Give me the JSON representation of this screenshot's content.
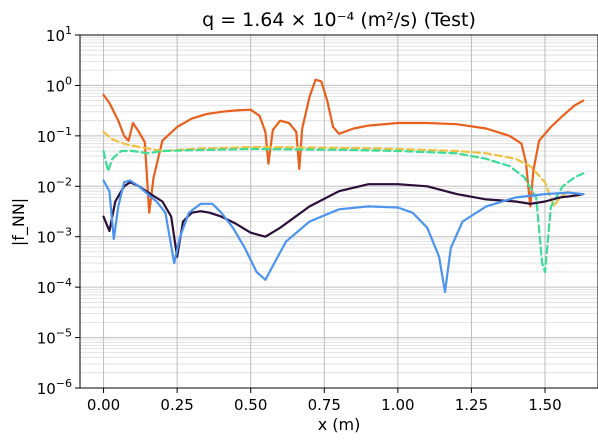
{
  "chart_data": {
    "type": "line",
    "title": "q = 1.64 × 10⁻⁴ (m²/s) (Test)",
    "xlabel": "x (m)",
    "ylabel": "|f_NN|",
    "xlim": [
      -0.08,
      1.68
    ],
    "ylim": [
      1e-06,
      10
    ],
    "yscale": "log",
    "grid": true,
    "legend": "none",
    "xticks": [
      {
        "value": 0.0,
        "label": "0.00"
      },
      {
        "value": 0.25,
        "label": "0.25"
      },
      {
        "value": 0.5,
        "label": "0.50"
      },
      {
        "value": 0.75,
        "label": "0.75"
      },
      {
        "value": 1.0,
        "label": "1.00"
      },
      {
        "value": 1.25,
        "label": "1.25"
      },
      {
        "value": 1.5,
        "label": "1.50"
      }
    ],
    "yticks": [
      {
        "value": 1e-06,
        "exp": "−6"
      },
      {
        "value": 1e-05,
        "exp": "−5"
      },
      {
        "value": 0.0001,
        "exp": "−4"
      },
      {
        "value": 0.001,
        "exp": "−3"
      },
      {
        "value": 0.01,
        "exp": "−2"
      },
      {
        "value": 0.1,
        "exp": "−1"
      },
      {
        "value": 1,
        "exp": "0"
      },
      {
        "value": 10,
        "exp": "1"
      }
    ],
    "series": [
      {
        "color": "#e8601c",
        "dashed": false,
        "points": [
          [
            0.0,
            0.65
          ],
          [
            0.02,
            0.45
          ],
          [
            0.05,
            0.2
          ],
          [
            0.07,
            0.1
          ],
          [
            0.085,
            0.08
          ],
          [
            0.1,
            0.18
          ],
          [
            0.12,
            0.12
          ],
          [
            0.14,
            0.075
          ],
          [
            0.155,
            0.003
          ],
          [
            0.17,
            0.015
          ],
          [
            0.2,
            0.08
          ],
          [
            0.25,
            0.15
          ],
          [
            0.3,
            0.22
          ],
          [
            0.35,
            0.27
          ],
          [
            0.4,
            0.3
          ],
          [
            0.45,
            0.32
          ],
          [
            0.5,
            0.33
          ],
          [
            0.53,
            0.25
          ],
          [
            0.55,
            0.12
          ],
          [
            0.56,
            0.028
          ],
          [
            0.575,
            0.13
          ],
          [
            0.6,
            0.2
          ],
          [
            0.63,
            0.18
          ],
          [
            0.655,
            0.12
          ],
          [
            0.665,
            0.022
          ],
          [
            0.675,
            0.14
          ],
          [
            0.7,
            0.6
          ],
          [
            0.72,
            1.3
          ],
          [
            0.74,
            1.2
          ],
          [
            0.76,
            0.5
          ],
          [
            0.78,
            0.15
          ],
          [
            0.8,
            0.11
          ],
          [
            0.85,
            0.14
          ],
          [
            0.9,
            0.16
          ],
          [
            1.0,
            0.18
          ],
          [
            1.1,
            0.18
          ],
          [
            1.2,
            0.17
          ],
          [
            1.3,
            0.14
          ],
          [
            1.38,
            0.1
          ],
          [
            1.42,
            0.07
          ],
          [
            1.435,
            0.03
          ],
          [
            1.45,
            0.004
          ],
          [
            1.46,
            0.02
          ],
          [
            1.48,
            0.08
          ],
          [
            1.52,
            0.15
          ],
          [
            1.56,
            0.25
          ],
          [
            1.6,
            0.4
          ],
          [
            1.63,
            0.5
          ]
        ]
      },
      {
        "color": "#f0c040",
        "dashed": true,
        "points": [
          [
            0.0,
            0.12
          ],
          [
            0.03,
            0.085
          ],
          [
            0.07,
            0.07
          ],
          [
            0.12,
            0.06
          ],
          [
            0.2,
            0.05
          ],
          [
            0.3,
            0.055
          ],
          [
            0.5,
            0.06
          ],
          [
            0.8,
            0.058
          ],
          [
            1.0,
            0.055
          ],
          [
            1.2,
            0.05
          ],
          [
            1.3,
            0.045
          ],
          [
            1.4,
            0.035
          ],
          [
            1.45,
            0.025
          ],
          [
            1.5,
            0.012
          ],
          [
            1.53,
            0.004
          ],
          [
            1.55,
            0.006
          ],
          [
            1.58,
            0.008
          ],
          [
            1.6,
            0.007
          ],
          [
            1.62,
            0.006
          ]
        ]
      },
      {
        "color": "#3ddc97",
        "dashed": true,
        "points": [
          [
            0.0,
            0.05
          ],
          [
            0.015,
            0.02
          ],
          [
            0.03,
            0.035
          ],
          [
            0.06,
            0.05
          ],
          [
            0.1,
            0.05
          ],
          [
            0.15,
            0.045
          ],
          [
            0.2,
            0.05
          ],
          [
            0.3,
            0.052
          ],
          [
            0.5,
            0.055
          ],
          [
            0.8,
            0.053
          ],
          [
            1.0,
            0.05
          ],
          [
            1.2,
            0.045
          ],
          [
            1.3,
            0.035
          ],
          [
            1.38,
            0.025
          ],
          [
            1.43,
            0.015
          ],
          [
            1.47,
            0.006
          ],
          [
            1.49,
            0.0003
          ],
          [
            1.5,
            0.0002
          ],
          [
            1.52,
            0.004
          ],
          [
            1.56,
            0.01
          ],
          [
            1.6,
            0.015
          ],
          [
            1.63,
            0.018
          ]
        ]
      },
      {
        "color": "#2b0f3a",
        "dashed": false,
        "points": [
          [
            0.0,
            0.0025
          ],
          [
            0.02,
            0.0013
          ],
          [
            0.04,
            0.005
          ],
          [
            0.07,
            0.01
          ],
          [
            0.09,
            0.012
          ],
          [
            0.12,
            0.01
          ],
          [
            0.16,
            0.007
          ],
          [
            0.2,
            0.005
          ],
          [
            0.23,
            0.0025
          ],
          [
            0.25,
            0.0004
          ],
          [
            0.27,
            0.002
          ],
          [
            0.3,
            0.003
          ],
          [
            0.33,
            0.0032
          ],
          [
            0.36,
            0.003
          ],
          [
            0.4,
            0.0025
          ],
          [
            0.45,
            0.0018
          ],
          [
            0.5,
            0.0012
          ],
          [
            0.55,
            0.001
          ],
          [
            0.6,
            0.0015
          ],
          [
            0.7,
            0.004
          ],
          [
            0.8,
            0.008
          ],
          [
            0.9,
            0.011
          ],
          [
            1.0,
            0.011
          ],
          [
            1.1,
            0.01
          ],
          [
            1.2,
            0.007
          ],
          [
            1.3,
            0.0055
          ],
          [
            1.4,
            0.005
          ],
          [
            1.45,
            0.0045
          ],
          [
            1.5,
            0.005
          ],
          [
            1.55,
            0.006
          ],
          [
            1.6,
            0.0065
          ],
          [
            1.63,
            0.007
          ]
        ]
      },
      {
        "color": "#4d94f0",
        "dashed": false,
        "points": [
          [
            0.0,
            0.013
          ],
          [
            0.02,
            0.008
          ],
          [
            0.035,
            0.0009
          ],
          [
            0.05,
            0.004
          ],
          [
            0.07,
            0.012
          ],
          [
            0.09,
            0.013
          ],
          [
            0.12,
            0.01
          ],
          [
            0.15,
            0.007
          ],
          [
            0.18,
            0.005
          ],
          [
            0.21,
            0.003
          ],
          [
            0.24,
            0.0003
          ],
          [
            0.26,
            0.001
          ],
          [
            0.29,
            0.003
          ],
          [
            0.33,
            0.0045
          ],
          [
            0.37,
            0.0045
          ],
          [
            0.4,
            0.003
          ],
          [
            0.44,
            0.0015
          ],
          [
            0.48,
            0.0006
          ],
          [
            0.52,
            0.0002
          ],
          [
            0.55,
            0.00014
          ],
          [
            0.58,
            0.0003
          ],
          [
            0.62,
            0.0008
          ],
          [
            0.7,
            0.002
          ],
          [
            0.8,
            0.0035
          ],
          [
            0.9,
            0.004
          ],
          [
            1.0,
            0.0038
          ],
          [
            1.05,
            0.003
          ],
          [
            1.1,
            0.0015
          ],
          [
            1.14,
            0.0004
          ],
          [
            1.16,
            8e-05
          ],
          [
            1.18,
            0.0006
          ],
          [
            1.22,
            0.002
          ],
          [
            1.3,
            0.004
          ],
          [
            1.4,
            0.006
          ],
          [
            1.5,
            0.007
          ],
          [
            1.58,
            0.0075
          ],
          [
            1.63,
            0.007
          ]
        ]
      }
    ]
  }
}
